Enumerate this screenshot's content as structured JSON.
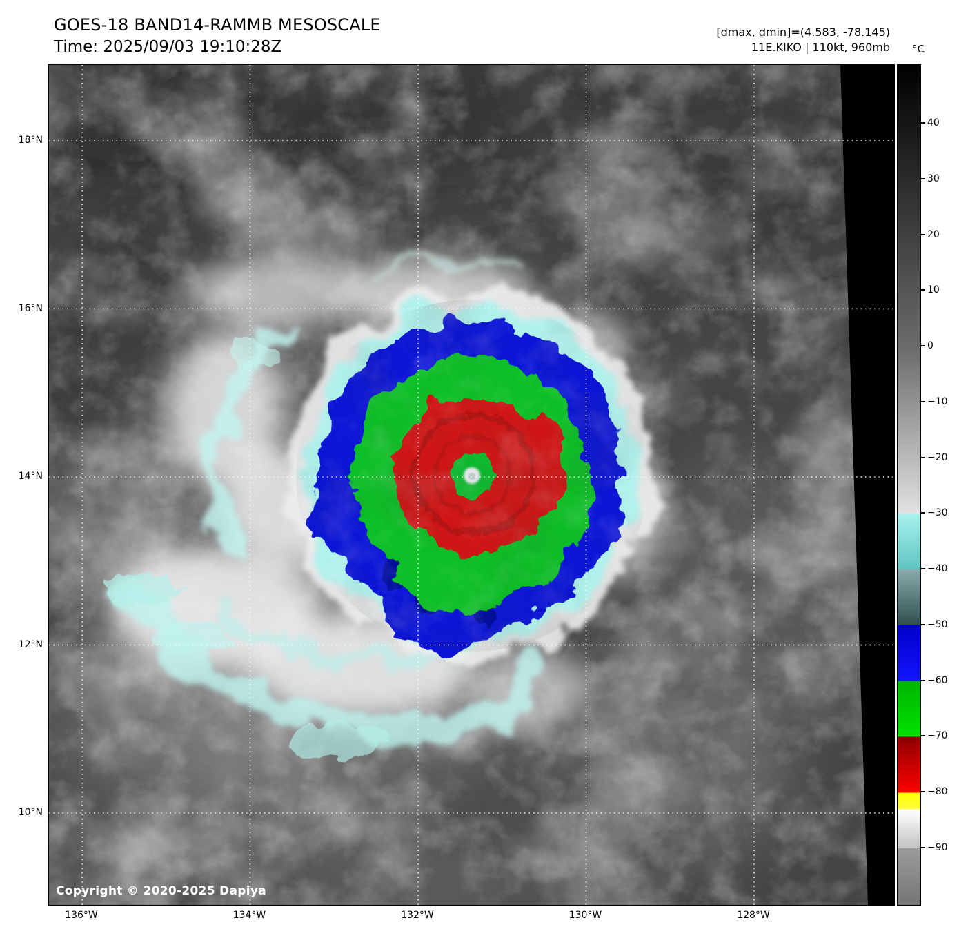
{
  "header": {
    "title": "GOES-18 BAND14-RAMMB MESOSCALE",
    "time_line": "Time: 2025/09/03 19:10:28Z"
  },
  "annotations": {
    "dmax_dmin": "[dmax, dmin]=(4.583, -78.145)",
    "storm_info": "11E.KIKO | 110kt, 960mb"
  },
  "map": {
    "copyright": "Copyright © 2020-2025 Dapiya",
    "lat_ticks": [
      {
        "value": 18,
        "label": "18°N"
      },
      {
        "value": 16,
        "label": "16°N"
      },
      {
        "value": 14,
        "label": "14°N"
      },
      {
        "value": 12,
        "label": "12°N"
      },
      {
        "value": 10,
        "label": "10°N"
      }
    ],
    "lon_ticks": [
      {
        "value": 136,
        "label": "136°W"
      },
      {
        "value": 134,
        "label": "134°W"
      },
      {
        "value": 132,
        "label": "132°W"
      },
      {
        "value": 130,
        "label": "130°W"
      },
      {
        "value": 128,
        "label": "128°W"
      }
    ]
  },
  "colorbar": {
    "unit_label": "°C",
    "ticks": [
      {
        "value": 40,
        "label": "40"
      },
      {
        "value": 30,
        "label": "30"
      },
      {
        "value": 20,
        "label": "20"
      },
      {
        "value": 10,
        "label": "10"
      },
      {
        "value": 0,
        "label": "0"
      },
      {
        "value": -10,
        "label": "−10"
      },
      {
        "value": -20,
        "label": "−20"
      },
      {
        "value": -30,
        "label": "−30"
      },
      {
        "value": -40,
        "label": "−40"
      },
      {
        "value": -50,
        "label": "−50"
      },
      {
        "value": -60,
        "label": "−60"
      },
      {
        "value": -70,
        "label": "−70"
      },
      {
        "value": -80,
        "label": "−80"
      },
      {
        "value": -90,
        "label": "−90"
      }
    ],
    "segments": [
      {
        "temp_from": 50.5,
        "temp_to": 0,
        "color_from": "#000000",
        "color_to": "#6a6a6a"
      },
      {
        "temp_from": 0,
        "temp_to": -30,
        "color_from": "#6a6a6a",
        "color_to": "#e2e2e2"
      },
      {
        "temp_from": -30,
        "temp_to": -40,
        "color_from": "#a8f2ee",
        "color_to": "#5fc4c0"
      },
      {
        "temp_from": -40,
        "temp_to": -50,
        "color_from": "#8aabab",
        "color_to": "#2f4f4f"
      },
      {
        "temp_from": -50,
        "temp_to": -60,
        "color_from": "#0000c8",
        "color_to": "#1414ff"
      },
      {
        "temp_from": -60,
        "temp_to": -70,
        "color_from": "#00b400",
        "color_to": "#00e100"
      },
      {
        "temp_from": -70,
        "temp_to": -80,
        "color_from": "#8c0000",
        "color_to": "#ff0000"
      },
      {
        "temp_from": -80,
        "temp_to": -83,
        "color_from": "#ffff00",
        "color_to": "#ffff40"
      },
      {
        "temp_from": -83,
        "temp_to": -90,
        "color_from": "#ffffff",
        "color_to": "#c3c3c3"
      },
      {
        "temp_from": -90,
        "temp_to": -100.2,
        "color_from": "#9b9b9b",
        "color_to": "#757575"
      }
    ]
  }
}
